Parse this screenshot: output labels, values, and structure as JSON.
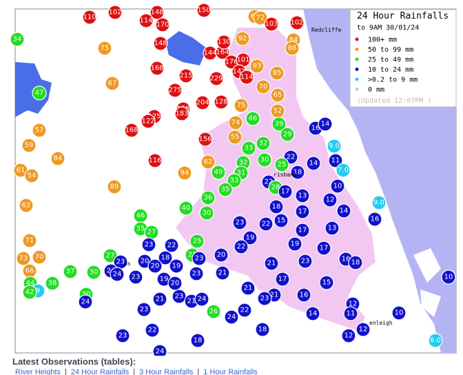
{
  "legend": {
    "title": "24 Hour Rainfalls",
    "subtitle": "to 9AM 30/01/24",
    "items": [
      {
        "label": "100+ mm",
        "color": "#dd1111"
      },
      {
        "label": "50  to 99 mm",
        "color": "#ee9922"
      },
      {
        "label": "25  to 49 mm",
        "color": "#22dd22"
      },
      {
        "label": "10  to 24 mm",
        "color": "#1111cc"
      },
      {
        "label": ">0.2 to 9 mm",
        "color": "#22ccee"
      },
      {
        "label": "0 mm",
        "color": "#cccccc"
      }
    ],
    "updated": "(Updated 12:07PM  )"
  },
  "places": [
    "Redcliffe",
    "risbane",
    "enleigh",
    "ps"
  ],
  "stations": [
    110,
    102,
    148,
    114,
    170,
    150,
    67,
    72,
    103,
    102,
    84,
    88,
    34,
    75,
    92,
    148,
    144,
    164,
    130,
    176,
    101,
    93,
    142,
    114,
    85,
    168,
    215,
    229,
    67,
    70,
    47,
    275,
    65,
    204,
    128,
    75,
    158,
    183,
    125,
    122,
    52,
    46,
    74,
    39,
    168,
    16,
    14,
    57,
    29,
    55,
    156,
    59,
    32,
    33,
    {
      "value": 9,
      "label": "9.0"
    },
    84,
    116,
    62,
    32,
    30,
    22,
    14,
    25,
    11,
    61,
    54,
    94,
    49,
    31,
    33,
    18,
    {
      "value": 7,
      "label": "7.0"
    },
    22,
    89,
    35,
    28,
    17,
    10,
    13,
    36,
    12,
    62,
    40,
    18,
    14,
    {
      "value": 9,
      "label": "9.0"
    },
    30,
    46,
    17,
    16,
    23,
    22,
    15,
    35,
    27,
    13,
    17,
    25,
    19,
    71,
    23,
    22,
    22,
    19,
    17,
    27,
    73,
    70,
    27,
    18,
    23,
    23,
    20,
    20,
    19,
    20,
    21,
    23,
    16,
    18,
    66,
    37,
    30,
    24,
    24,
    23,
    23,
    21,
    19,
    20,
    17,
    10,
    15,
    44,
    38,
    9,
    42,
    21,
    30,
    24,
    21,
    23,
    21,
    24,
    21,
    23,
    16,
    12,
    22,
    26,
    23,
    14,
    11,
    24,
    10,
    22,
    18,
    12,
    12,
    23,
    18,
    {
      "value": 6,
      "label": "6.0"
    },
    24
  ],
  "footer": {
    "heading": "Latest Observations (tables):",
    "links": [
      "River Heights",
      "24 Hour Rainfalls",
      "3 Hour Rainfalls",
      "1 Hour Rainfalls"
    ],
    "separator": "|"
  }
}
